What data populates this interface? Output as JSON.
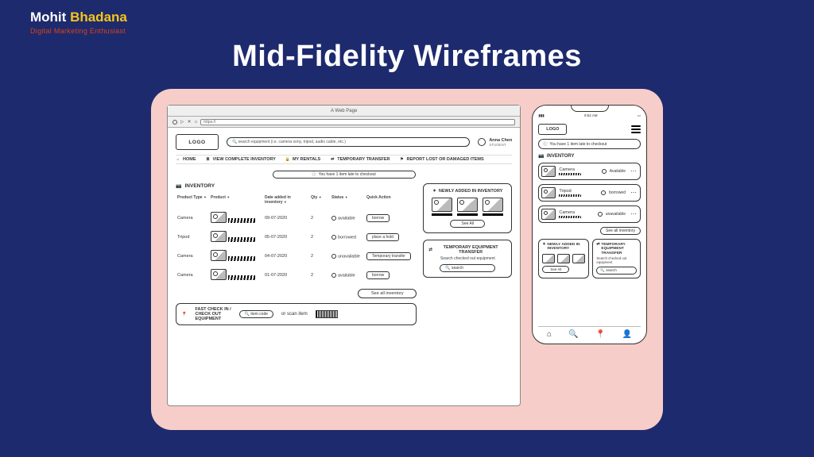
{
  "author": {
    "first": "Mohit",
    "last": "Bhadana",
    "tagline": "Digital Marketing  Enthusiast"
  },
  "headline": "Mid-Fidelity Wireframes",
  "colors": {
    "page_bg": "#1e2a6e",
    "card_bg": "#f7cdc9",
    "accent_yellow": "#f5c518",
    "accent_orange": "#d84315",
    "wire_stroke": "#333333"
  },
  "desktop": {
    "window_title": "A Web Page",
    "url_text": "https://",
    "logo": "LOGO",
    "search_placeholder": "search equipment (i.e. camera sony, tripod, audio cable, etc.)",
    "user": {
      "name": "Anna Chen",
      "role": "STUDENT"
    },
    "nav": [
      {
        "icon": "⌂",
        "label": "HOME"
      },
      {
        "icon": "≣",
        "label": "VIEW COMPLETE INVENTORY"
      },
      {
        "icon": "🔒",
        "label": "MY RENTALS"
      },
      {
        "icon": "⇄",
        "label": "TEMPORARY TRANSFER"
      },
      {
        "icon": "⚑",
        "label": "REPORT LOST OR DAMAGED ITEMS"
      }
    ],
    "alert": "You have 1 item late to checkout",
    "inventory_title": "INVENTORY",
    "columns": {
      "pt": "Product Type",
      "pr": "Product",
      "da": "Date added in inventory",
      "qt": "Qty",
      "st": "Status",
      "qa": "Quick Action"
    },
    "rows": [
      {
        "pt": "Camera",
        "date": "09-07-2020",
        "qty": "2",
        "status": "available",
        "action": "borrow"
      },
      {
        "pt": "Tripod",
        "date": "05-07-2020",
        "qty": "2",
        "status": "borrowed",
        "action": "place a hold"
      },
      {
        "pt": "Camera",
        "date": "04-07-2020",
        "qty": "2",
        "status": "unavailable",
        "action": "Temporary transfer"
      },
      {
        "pt": "Camera",
        "date": "01-07-2020",
        "qty": "2",
        "status": "available",
        "action": "borrow"
      }
    ],
    "see_all": "See all inventory",
    "fast": {
      "title_l1": "FAST CHECK IN /",
      "title_l2": "CHECK OUT",
      "title_l3": "EQUIPMENT",
      "input": "item code",
      "or": "or scan item"
    },
    "panel_new": {
      "title": "NEWLY ADDED IN INVENTORY",
      "see": "See All"
    },
    "panel_tmp": {
      "title": "TEMPORARY EQUIPMENT TRANSFER",
      "sub": "Search checked out equipment",
      "search": "search"
    }
  },
  "mobile": {
    "time": "9:52 AM",
    "logo": "LOGO",
    "alert": "You have 1 item late to checkout",
    "inventory_title": "INVENTORY",
    "items": [
      {
        "name": "Camera",
        "status": "Available"
      },
      {
        "name": "Tripod",
        "status": "borrowed"
      },
      {
        "name": "Camera",
        "status": "unavailable"
      }
    ],
    "see_all": "See all inventory",
    "panel_new": {
      "title": "NEWLY ADDED IN INVENTORY",
      "see": "See All"
    },
    "panel_tmp": {
      "title": "TEMPORARY EQUIPMENT TRANSFER",
      "sub": "Search checked out equipment",
      "search": "search"
    },
    "tabs": {
      "home": "⌂",
      "search": "🔍",
      "pin": "📍",
      "user": "👤"
    }
  }
}
